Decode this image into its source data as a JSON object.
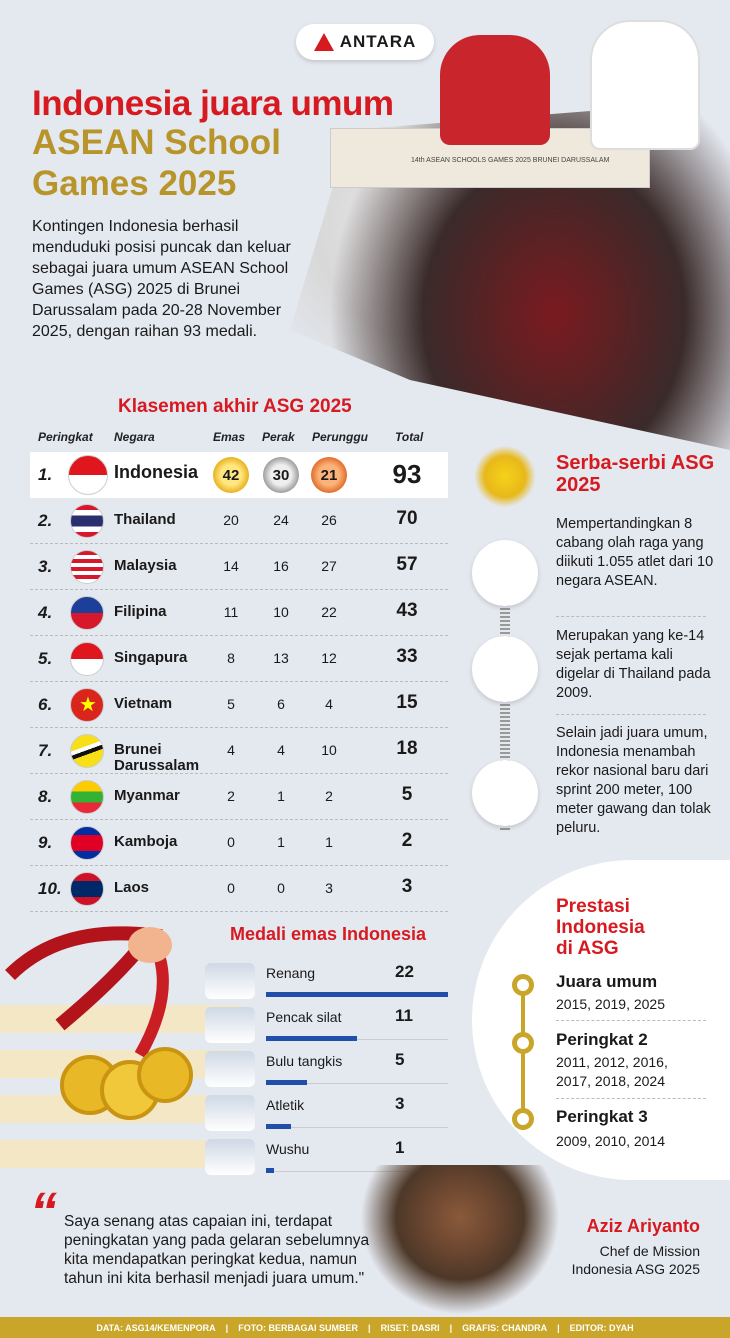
{
  "brand": {
    "logo_text": "ANTARA"
  },
  "header": {
    "title_line1": "Indonesia juara umum",
    "title_line2": "ASEAN School Games 2025",
    "intro": "Kontingen Indonesia berhasil menduduki posisi puncak dan keluar sebagai juara umum ASEAN School Games (ASG) 2025 di Brunei Darussalam pada 20-28 November 2025, dengan raihan 93 medali.",
    "banner_text": "14th ASEAN SCHOOLS GAMES 2025 BRUNEI DARUSSALAM"
  },
  "standings": {
    "title": "Klasemen akhir ASG 2025",
    "columns": [
      "Peringkat",
      "Negara",
      "Emas",
      "Perak",
      "Perunggu",
      "Total"
    ],
    "rows": [
      {
        "rank": "1.",
        "country": "Indonesia",
        "gold": 42,
        "silver": 30,
        "bronze": 21,
        "total": 93,
        "flag": "id"
      },
      {
        "rank": "2.",
        "country": "Thailand",
        "gold": 20,
        "silver": 24,
        "bronze": 26,
        "total": 70,
        "flag": "th"
      },
      {
        "rank": "3.",
        "country": "Malaysia",
        "gold": 14,
        "silver": 16,
        "bronze": 27,
        "total": 57,
        "flag": "my"
      },
      {
        "rank": "4.",
        "country": "Filipina",
        "gold": 11,
        "silver": 10,
        "bronze": 22,
        "total": 43,
        "flag": "ph"
      },
      {
        "rank": "5.",
        "country": "Singapura",
        "gold": 8,
        "silver": 13,
        "bronze": 12,
        "total": 33,
        "flag": "sg"
      },
      {
        "rank": "6.",
        "country": "Vietnam",
        "gold": 5,
        "silver": 6,
        "bronze": 4,
        "total": 15,
        "flag": "vn"
      },
      {
        "rank": "7.",
        "country": "Brunei Darussalam",
        "gold": 4,
        "silver": 4,
        "bronze": 10,
        "total": 18,
        "flag": "bn"
      },
      {
        "rank": "8.",
        "country": "Myanmar",
        "gold": 2,
        "silver": 1,
        "bronze": 2,
        "total": 5,
        "flag": "mm"
      },
      {
        "rank": "9.",
        "country": "Kamboja",
        "gold": 0,
        "silver": 1,
        "bronze": 1,
        "total": 2,
        "flag": "kh"
      },
      {
        "rank": "10.",
        "country": "Laos",
        "gold": 0,
        "silver": 0,
        "bronze": 3,
        "total": 3,
        "flag": "la"
      }
    ]
  },
  "facts": {
    "title": "Serba-serbi ASG 2025",
    "logo_text": "14th ASEAN SCHOOLS GAMES 2025 BRUNEI DARUSSALAM",
    "items": [
      "Mempertandingkan 8 cabang olah raga yang diikuti 1.055 atlet dari 10 negara ASEAN.",
      "Merupakan yang ke-14 sejak pertama kali digelar di Thailand pada 2009.",
      "Selain jadi juara umum, Indonesia menambah rekor nasional baru dari sprint 200 meter, 100 meter gawang dan tolak peluru."
    ]
  },
  "chart_data": {
    "type": "bar",
    "title": "Medali emas Indonesia",
    "categories": [
      "Renang",
      "Pencak silat",
      "Bulu tangkis",
      "Atletik",
      "Wushu"
    ],
    "values": [
      22,
      11,
      5,
      3,
      1
    ],
    "color": "#1f4fa8"
  },
  "achievements": {
    "title": "Prestasi Indonesia di ASG",
    "items": [
      {
        "label": "Juara umum",
        "years": "2015, 2019, 2025"
      },
      {
        "label": "Peringkat 2",
        "years": "2011, 2012, 2016, 2017, 2018, 2024"
      },
      {
        "label": "Peringkat 3",
        "years": "2009, 2010, 2014"
      }
    ]
  },
  "quote": {
    "text": "Saya senang atas capaian ini, terdapat peningkatan yang pada gelaran sebelumnya kita mendapatkan peringkat kedua, namun tahun ini kita berhasil menjadi juara umum.\"",
    "name": "Aziz Ariyanto",
    "role": "Chef de Mission Indonesia ASG 2025"
  },
  "footer": [
    "DATA: ASG14/KEMENPORA",
    "|",
    "FOTO: BERBAGAI SUMBER",
    "|",
    "RISET: DASRI",
    "|",
    "GRAFIS: CHANDRA",
    "|",
    "EDITOR: DYAH"
  ],
  "colors": {
    "red": "#d71920",
    "gold": "#b8952a",
    "blue": "#1f4fa8",
    "footer": "#c9a62a",
    "background": "#e4e8ef"
  }
}
